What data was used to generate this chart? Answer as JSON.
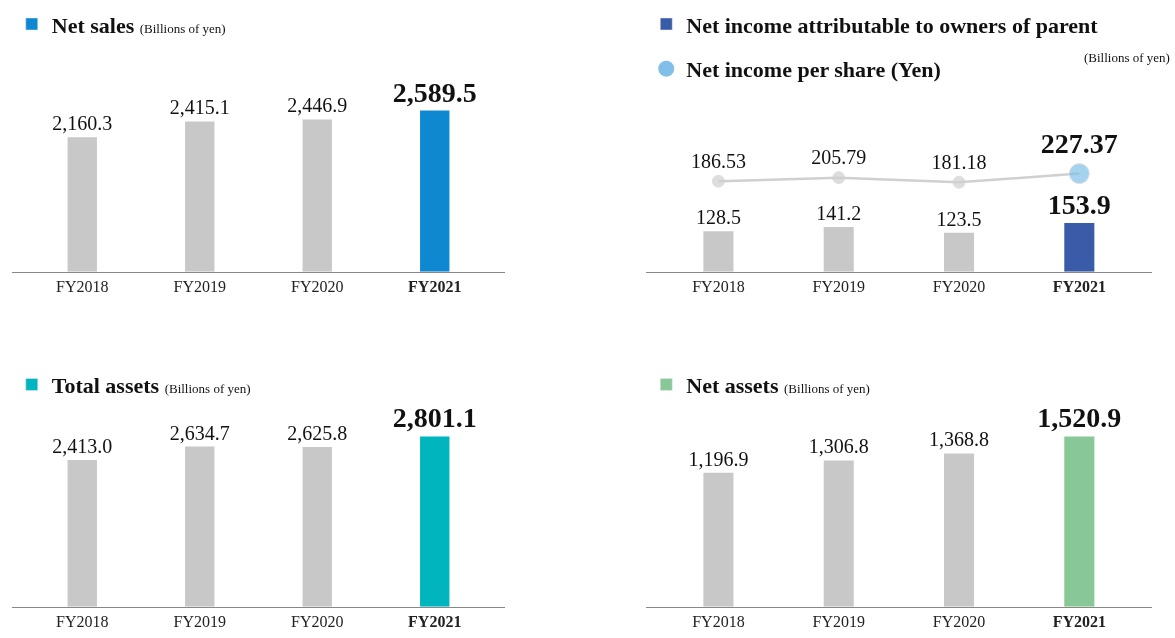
{
  "chart_data": [
    {
      "type": "bar",
      "subtitle": "(Billions of yen)",
      "categories": [
        "FY2018",
        "FY2019",
        "FY2020",
        "FY2021"
      ],
      "series": [
        {
          "name": "Net sales",
          "color": "#0e88d0",
          "colors": [
            "#c8c8c8",
            "#c8c8c8",
            "#c8c8c8",
            "#0e88d0"
          ],
          "values": [
            2160.3,
            2415.1,
            2446.9,
            2589.5
          ],
          "value_labels": [
            "2,160.3",
            "2,415.1",
            "2,446.9",
            "2,589.5"
          ]
        }
      ],
      "legend": "top left",
      "tick_labels": "x"
    },
    {
      "type": "bar",
      "annotations": [
        "(Billions of yen)"
      ],
      "categories": [
        "FY2018",
        "FY2019",
        "FY2020",
        "FY2021"
      ],
      "series": [
        {
          "name": "Net income attributable to owners of parent",
          "color": "#3a5ca8",
          "colors": [
            "#c8c8c8",
            "#c8c8c8",
            "#c8c8c8",
            "#3a5ca8"
          ],
          "values": [
            128.5,
            141.2,
            123.5,
            153.9
          ],
          "value_labels": [
            "128.5",
            "141.2",
            "123.5",
            "153.9"
          ]
        }
      ],
      "legend": "top left",
      "tick_labels": "x"
    },
    {
      "type": "line",
      "marker": "circle",
      "categories": [
        null,
        null,
        null,
        null
      ],
      "series": [
        {
          "name": "Net income per share (Yen)",
          "color": "#d0d0d0",
          "colors": [
            "#d0d0d0",
            "#d0d0d0",
            "#d0d0d0",
            "#80bfe8"
          ],
          "values": [
            186.53,
            205.79,
            181.18,
            227.37
          ],
          "value_labels": [
            "186.53",
            "205.79",
            "181.18",
            "227.37"
          ]
        }
      ],
      "legend": "top left",
      "tick_labels": false
    },
    {
      "type": "bar",
      "subtitle": "(Billions of yen)",
      "categories": [
        "FY2018",
        "FY2019",
        "FY2020",
        "FY2021"
      ],
      "series": [
        {
          "name": "Total assets",
          "color": "#00b5be",
          "colors": [
            "#c8c8c8",
            "#c8c8c8",
            "#c8c8c8",
            "#00b5be"
          ],
          "values": [
            2413.0,
            2634.7,
            2625.8,
            2801.1
          ],
          "value_labels": [
            "2,413.0",
            "2,634.7",
            "2,625.8",
            "2,801.1"
          ]
        }
      ],
      "legend": "top left",
      "tick_labels": "x"
    },
    {
      "type": "bar",
      "subtitle": "(Billions of yen)",
      "categories": [
        "FY2018",
        "FY2019",
        "FY2020",
        "FY2021"
      ],
      "series": [
        {
          "name": "Net assets",
          "color": "#88c896",
          "colors": [
            "#c8c8c8",
            "#c8c8c8",
            "#c8c8c8",
            "#88c896"
          ],
          "values": [
            1196.9,
            1306.8,
            1368.8,
            1520.9
          ],
          "value_labels": [
            "1,196.9",
            "1,306.8",
            "1,368.8",
            "1,520.9"
          ]
        }
      ],
      "legend": "top left",
      "tick_labels": "x"
    }
  ]
}
